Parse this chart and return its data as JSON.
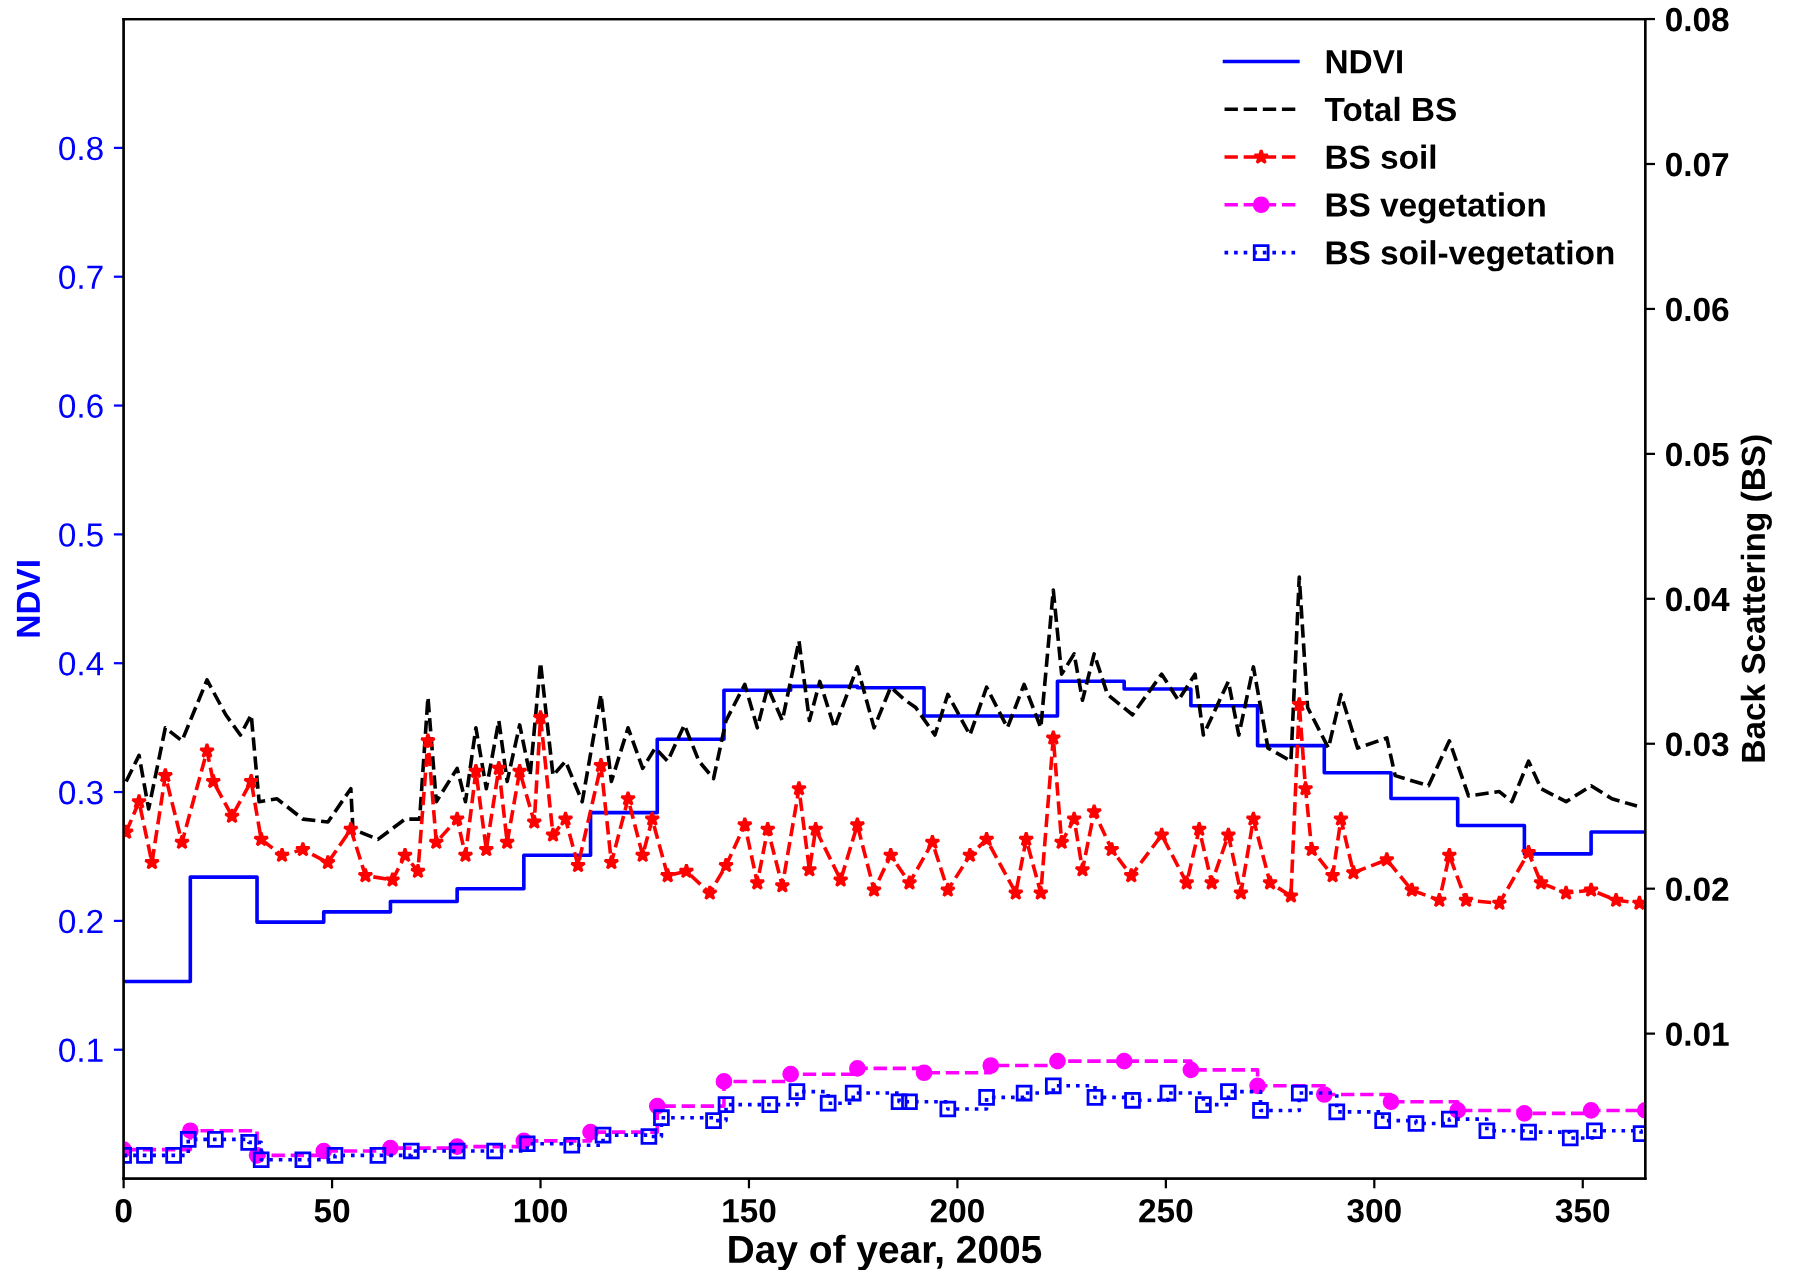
{
  "chart_data": {
    "type": "line",
    "xlabel": "Day of year, 2005",
    "ylabel": "NDVI",
    "y2label": "Back Scattering (BS)",
    "xlim": [
      0,
      365
    ],
    "xticks": [
      0,
      50,
      100,
      150,
      200,
      250,
      300,
      350
    ],
    "ylim": [
      0,
      0.9
    ],
    "yticks": [
      0.1,
      0.2,
      0.3,
      0.4,
      0.5,
      0.6,
      0.7,
      0.8
    ],
    "y2lim": [
      0,
      0.08
    ],
    "y2ticks": [
      0.01,
      0.02,
      0.03,
      0.04,
      0.05,
      0.06,
      0.07,
      0.08
    ],
    "grid": false,
    "legend": "top right",
    "series": [
      {
        "name": "NDVI",
        "type": "step",
        "color": "#0000ff",
        "line_style": "solid",
        "marker": "none",
        "x": [
          0,
          16,
          32,
          48,
          64,
          80,
          96,
          112,
          128,
          144,
          160,
          176,
          192,
          208,
          224,
          240,
          256,
          272,
          288,
          304,
          320,
          336,
          352,
          365
        ],
        "values": [
          0.153,
          0.234,
          0.199,
          0.207,
          0.215,
          0.225,
          0.251,
          0.284,
          0.341,
          0.379,
          0.382,
          0.381,
          0.359,
          0.359,
          0.386,
          0.38,
          0.367,
          0.336,
          0.315,
          0.295,
          0.274,
          0.252,
          0.269,
          0.269
        ]
      },
      {
        "name": "Total BS",
        "axis": "y2",
        "color": "#000000",
        "line_style": "dashed",
        "marker": "none",
        "x": [
          0.6,
          3.7,
          6,
          10,
          14,
          20,
          24.5,
          28,
          30.6,
          32.5,
          36.8,
          43,
          49,
          54.5,
          55,
          61,
          67.5,
          71,
          73,
          75,
          80,
          82,
          84.5,
          87,
          90,
          92,
          95,
          97.5,
          100,
          103,
          106,
          110,
          114.5,
          117,
          121,
          124.5,
          127.5,
          130.5,
          134.5,
          138,
          141.5,
          144.5,
          149,
          152,
          154.5,
          158,
          162,
          164.5,
          167,
          170.5,
          176,
          180,
          184,
          187.5,
          190,
          194.6,
          197.7,
          203,
          207,
          212,
          216,
          220,
          223,
          225,
          228,
          230,
          232.8,
          236,
          242,
          249,
          253,
          257,
          259,
          265,
          267.5,
          271,
          274.5,
          280,
          282,
          284,
          289,
          292,
          296,
          303,
          305,
          313,
          318,
          322.6,
          330,
          333,
          337,
          340,
          346,
          352,
          357,
          363
        ],
        "values": [
          0.0274,
          0.0292,
          0.0255,
          0.0311,
          0.0302,
          0.0344,
          0.032,
          0.0306,
          0.032,
          0.026,
          0.0262,
          0.0248,
          0.0246,
          0.0269,
          0.0241,
          0.0234,
          0.0248,
          0.0248,
          0.0332,
          0.026,
          0.0283,
          0.026,
          0.0311,
          0.0269,
          0.0316,
          0.0274,
          0.0313,
          0.0278,
          0.0356,
          0.0278,
          0.0288,
          0.026,
          0.0334,
          0.0274,
          0.0311,
          0.0283,
          0.0297,
          0.0288,
          0.0313,
          0.0288,
          0.0276,
          0.0316,
          0.0341,
          0.0311,
          0.0339,
          0.0316,
          0.0371,
          0.0316,
          0.0343,
          0.0311,
          0.0353,
          0.0311,
          0.0339,
          0.033,
          0.0325,
          0.0306,
          0.0334,
          0.0306,
          0.0339,
          0.0311,
          0.0341,
          0.0311,
          0.0406,
          0.0348,
          0.0362,
          0.033,
          0.0362,
          0.0334,
          0.032,
          0.0348,
          0.033,
          0.0348,
          0.0306,
          0.0343,
          0.0306,
          0.0353,
          0.0297,
          0.0288,
          0.0415,
          0.0325,
          0.0297,
          0.0334,
          0.0297,
          0.0304,
          0.0278,
          0.0271,
          0.0302,
          0.0264,
          0.0267,
          0.026,
          0.0288,
          0.0269,
          0.026,
          0.0271,
          0.0262,
          0.0257
        ]
      },
      {
        "name": "BS soil",
        "axis": "y2",
        "color": "#ff0000",
        "line_style": "dashed",
        "marker": "star",
        "x": [
          0.6,
          3.7,
          6.8,
          10,
          14,
          20,
          21.5,
          26,
          30.6,
          33,
          38,
          43,
          49,
          54.5,
          58,
          64.5,
          67.5,
          70.6,
          73,
          75,
          80,
          82,
          84.5,
          87,
          90,
          92,
          95,
          98.5,
          100,
          103,
          106,
          109,
          114.5,
          117,
          121,
          124.5,
          126.8,
          130.5,
          135,
          140.6,
          144.5,
          149,
          152,
          154.5,
          158,
          162,
          164.5,
          166,
          172,
          176,
          180,
          184,
          188.5,
          194,
          197.7,
          203,
          207,
          214,
          216.5,
          220,
          223,
          225,
          228,
          230,
          232.8,
          237,
          241.7,
          249,
          255,
          258,
          261,
          265,
          268,
          271,
          275,
          280,
          282,
          283.5,
          285,
          290,
          292,
          295,
          303,
          309,
          315.6,
          318,
          322,
          330,
          337,
          340,
          346,
          352,
          358,
          363.6
        ],
        "values": [
          0.0239,
          0.026,
          0.0218,
          0.0278,
          0.0232,
          0.0295,
          0.0274,
          0.025,
          0.0274,
          0.0234,
          0.0223,
          0.0227,
          0.0218,
          0.0241,
          0.0209,
          0.0206,
          0.0223,
          0.0212,
          0.0302,
          0.0232,
          0.0248,
          0.0223,
          0.0281,
          0.0227,
          0.0283,
          0.0232,
          0.0281,
          0.0246,
          0.0318,
          0.0237,
          0.0248,
          0.0216,
          0.0285,
          0.0218,
          0.0262,
          0.0223,
          0.0248,
          0.0209,
          0.0212,
          0.0197,
          0.0216,
          0.0244,
          0.0204,
          0.0241,
          0.0202,
          0.0269,
          0.0213,
          0.0241,
          0.0206,
          0.0244,
          0.0199,
          0.0223,
          0.0204,
          0.0232,
          0.0199,
          0.0223,
          0.0234,
          0.0197,
          0.0234,
          0.0197,
          0.0304,
          0.0232,
          0.0248,
          0.0213,
          0.0253,
          0.0227,
          0.0209,
          0.0237,
          0.0204,
          0.0241,
          0.0204,
          0.0237,
          0.0197,
          0.0248,
          0.0204,
          0.0195,
          0.0327,
          0.0269,
          0.0227,
          0.0209,
          0.0248,
          0.0211,
          0.022,
          0.0199,
          0.0192,
          0.0223,
          0.0192,
          0.019,
          0.0225,
          0.0204,
          0.0197,
          0.0199,
          0.0192,
          0.019
        ]
      },
      {
        "name": "BS vegetation",
        "type": "step",
        "axis": "y2",
        "color": "#ff00ff",
        "line_style": "dashed",
        "marker": "circle",
        "x": [
          0,
          16,
          32,
          48,
          64,
          80,
          96,
          112,
          128,
          144,
          160,
          176,
          192,
          208,
          224,
          240,
          256,
          272,
          288,
          304,
          320,
          336,
          352,
          365
        ],
        "values": [
          0.002,
          0.0033,
          0.0016,
          0.0019,
          0.0021,
          0.0022,
          0.0026,
          0.0032,
          0.005,
          0.0067,
          0.0072,
          0.0076,
          0.0073,
          0.0078,
          0.0081,
          0.0081,
          0.0075,
          0.0064,
          0.0058,
          0.0053,
          0.0047,
          0.0045,
          0.0047,
          0.0047
        ]
      },
      {
        "name": "BS soil-vegetation",
        "type": "step",
        "axis": "y2",
        "color": "#0000ff",
        "line_style": "dotted",
        "marker": "square",
        "x": [
          0,
          5,
          12,
          15.5,
          22,
          30,
          33,
          43,
          50.7,
          61,
          69,
          80,
          89,
          96.8,
          107.5,
          115,
          126,
          129,
          141.5,
          144.5,
          155,
          161.5,
          169,
          175,
          186,
          188.5,
          197.7,
          207,
          216,
          223,
          233,
          242,
          250.5,
          259,
          265,
          272.7,
          282,
          291,
          302,
          310,
          318,
          327,
          337,
          347,
          352.8,
          364
        ],
        "values": [
          0.0016,
          0.0016,
          0.0016,
          0.0027,
          0.0027,
          0.0025,
          0.0013,
          0.0013,
          0.0016,
          0.0016,
          0.0019,
          0.0019,
          0.0019,
          0.0024,
          0.0023,
          0.003,
          0.0029,
          0.0042,
          0.004,
          0.0051,
          0.0051,
          0.006,
          0.0052,
          0.0059,
          0.0053,
          0.0053,
          0.0048,
          0.0056,
          0.0059,
          0.0064,
          0.0056,
          0.0054,
          0.0059,
          0.0051,
          0.006,
          0.0047,
          0.0059,
          0.0046,
          0.004,
          0.0038,
          0.0041,
          0.0033,
          0.0032,
          0.0028,
          0.0033,
          0.0031
        ]
      }
    ]
  }
}
